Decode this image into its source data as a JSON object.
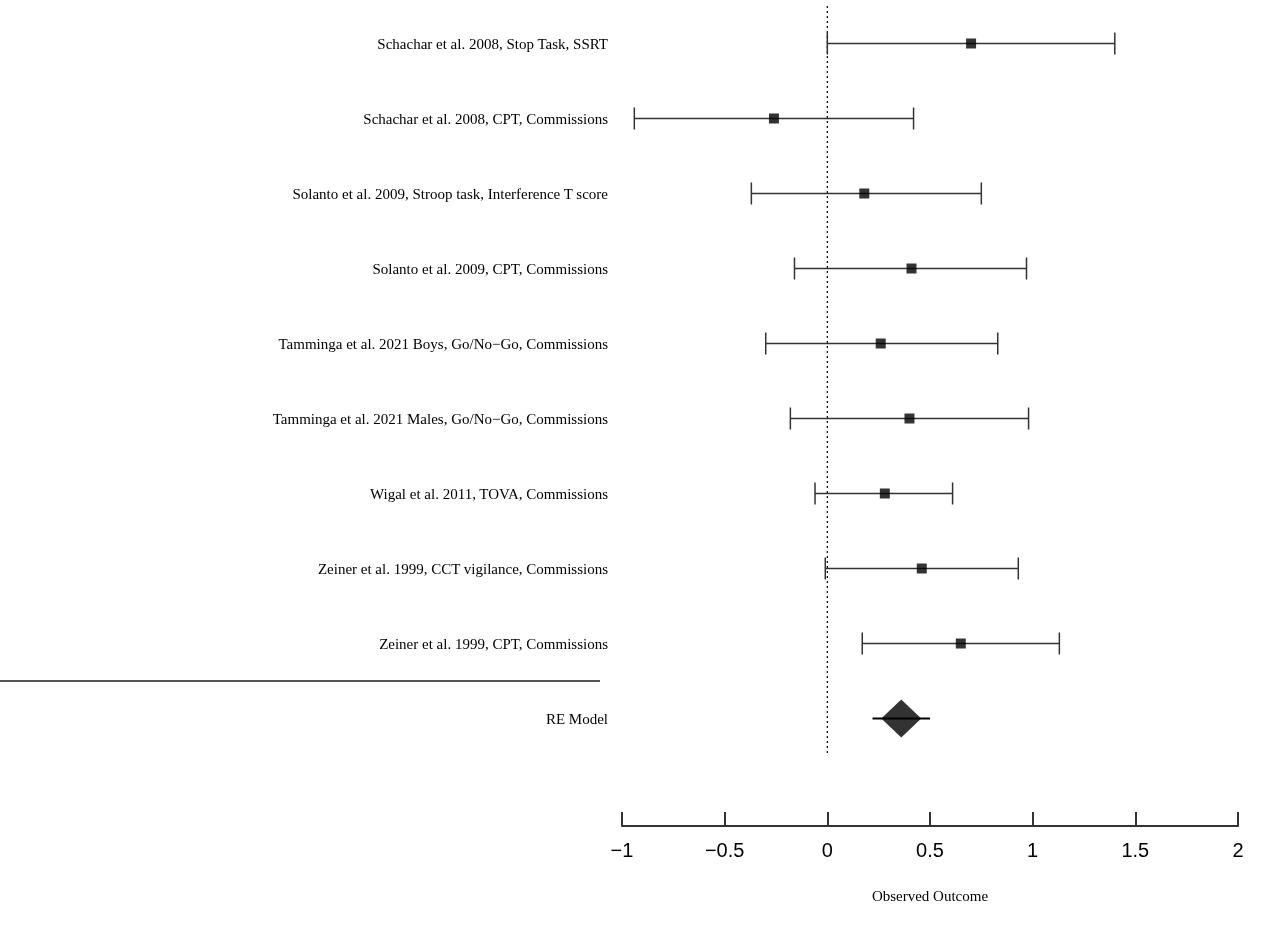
{
  "chart_data": {
    "type": "scatter",
    "orientation": "horizontal",
    "xlabel": "Observed Outcome",
    "categories": [
      "Schachar et al. 2008, Stop Task, SSRT",
      "Schachar et al. 2008, CPT, Commissions",
      "Solanto et al. 2009, Stroop task, Interference T score",
      "Solanto et al. 2009, CPT, Commissions",
      "Tamminga et al. 2021 Boys, Go/No−Go, Commissions",
      "Tamminga et al. 2021 Males, Go/No−Go, Commissions",
      "Wigal et al. 2011, TOVA, Commissions",
      "Zeiner et al. 1999, CCT vigilance, Commissions",
      "Zeiner et al. 1999, CPT, Commissions",
      "RE Model"
    ],
    "xlim": [
      -1,
      2
    ],
    "xticks": [
      {
        "value": -1,
        "label": "−1"
      },
      {
        "value": -0.5,
        "label": "−0.5"
      },
      {
        "value": 0,
        "label": "0"
      },
      {
        "value": 0.5,
        "label": "0.5"
      },
      {
        "value": 1,
        "label": "1"
      },
      {
        "value": 1.5,
        "label": "1.5"
      },
      {
        "value": 2,
        "label": "2"
      }
    ],
    "ref_lines": [
      {
        "axis": "x",
        "value": 0,
        "line_style": "dotted",
        "color": "#000000"
      }
    ],
    "series": [
      {
        "color": "#000000",
        "marker": "square",
        "values": [
          0.7,
          -0.26,
          0.18,
          0.41,
          0.26,
          0.4,
          0.28,
          0.46,
          0.65,
          null
        ],
        "errors": [
          [
            0.0,
            1.4
          ],
          [
            -0.94,
            0.42
          ],
          [
            -0.37,
            0.75
          ],
          [
            -0.16,
            0.97
          ],
          [
            -0.3,
            0.83
          ],
          [
            -0.18,
            0.98
          ],
          [
            -0.06,
            0.61
          ],
          [
            -0.01,
            0.93
          ],
          [
            0.17,
            1.13
          ],
          null
        ]
      },
      {
        "color": "#000000",
        "marker": "diamond",
        "values": [
          null,
          null,
          null,
          null,
          null,
          null,
          null,
          null,
          null,
          0.36
        ],
        "errors": [
          null,
          null,
          null,
          null,
          null,
          null,
          null,
          null,
          null,
          [
            0.22,
            0.5
          ]
        ]
      }
    ]
  }
}
